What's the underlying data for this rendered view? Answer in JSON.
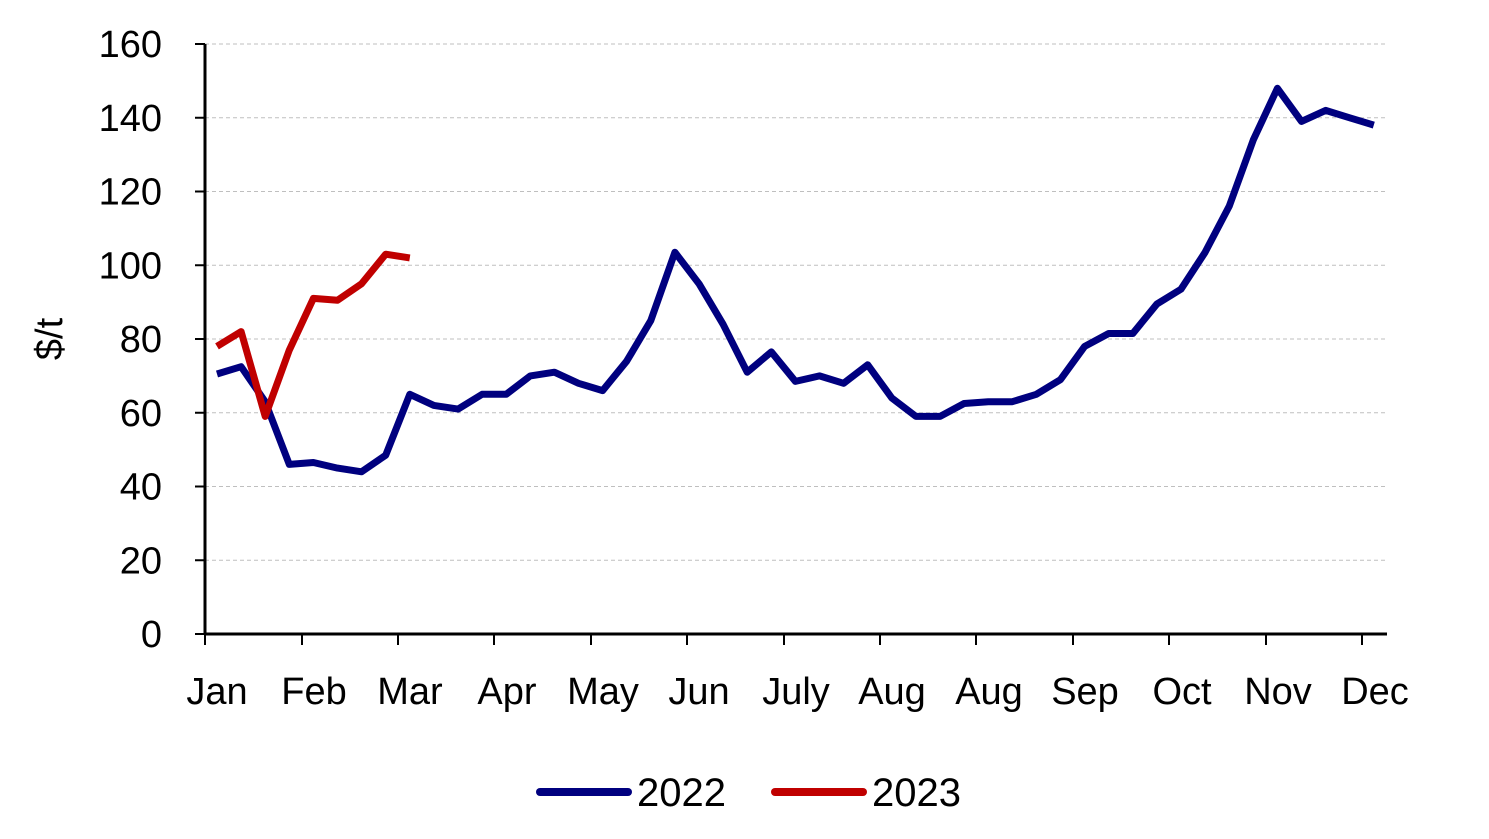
{
  "chart_data": {
    "type": "line",
    "ylabel": "$/t",
    "xlabel": "",
    "ylim": [
      0,
      160
    ],
    "yticks": [
      0,
      20,
      40,
      60,
      80,
      100,
      120,
      140,
      160
    ],
    "x_tick_labels": [
      "Jan",
      "Feb",
      "Mar",
      "Apr",
      "May",
      "Jun",
      "July",
      "Aug",
      "Aug",
      "Sep",
      "Oct",
      "Nov",
      "Dec"
    ],
    "grid": "horizontal dashed",
    "legend_position": "bottom",
    "series": [
      {
        "name": "2022",
        "color": "#00007F",
        "values": [
          70.5,
          72.5,
          63,
          46,
          46.5,
          45,
          44,
          48.5,
          65,
          62,
          61,
          65,
          65,
          70,
          71,
          68,
          66,
          74,
          85,
          103.5,
          95,
          84,
          71,
          76.5,
          68.5,
          70,
          68,
          73,
          64,
          59,
          59,
          62.5,
          63,
          63,
          65,
          69,
          78,
          81.5,
          81.5,
          89.5,
          93.5,
          103.5,
          116,
          134,
          148,
          139,
          142,
          140,
          138
        ]
      },
      {
        "name": "2023",
        "color": "#C00000",
        "values": [
          78,
          82,
          59,
          77,
          91,
          90.5,
          95,
          103,
          102
        ]
      }
    ]
  }
}
